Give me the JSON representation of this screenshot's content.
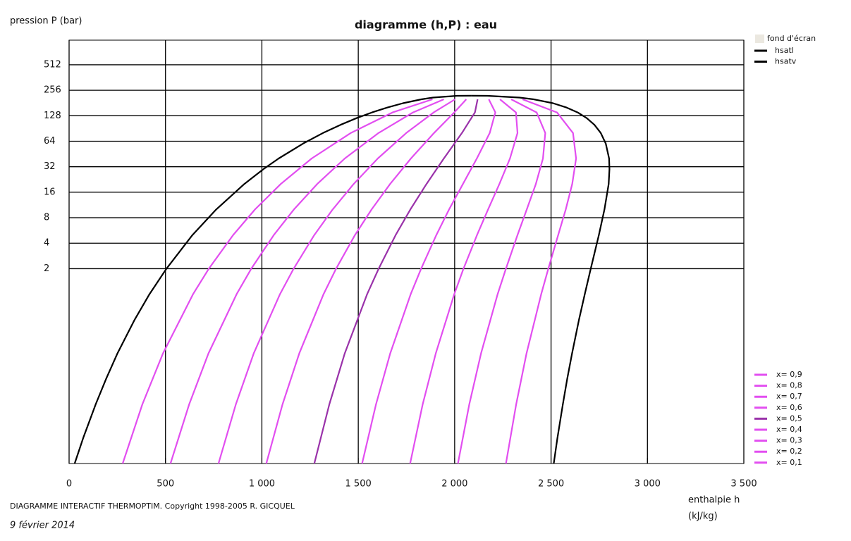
{
  "chart_data": {
    "type": "line",
    "title": "diagramme (h,P) : eau",
    "y_label": "pression  P (bar)",
    "x_label": [
      "enthalpie  h",
      "(kJ/kg)"
    ],
    "footer": "DIAGRAMME INTERACTIF THERMOPTIM.   Copyright 1998-2005   R. GICQUEL",
    "date": "9 février 2014",
    "xlim": [
      0,
      3500
    ],
    "xticks": [
      0,
      500,
      {
        "value": 1000,
        "label": "1 000"
      },
      {
        "value": 1500,
        "label": "1 500"
      },
      {
        "value": 2000,
        "label": "2 000"
      },
      {
        "value": 2500,
        "label": "2 500"
      },
      {
        "value": 3000,
        "label": "3 000"
      },
      {
        "value": 3500,
        "label": "3 500"
      }
    ],
    "ylim": [
      0.01,
      1000
    ],
    "ylog": true,
    "yticks": [
      2,
      4,
      8,
      16,
      32,
      64,
      128,
      256,
      512
    ],
    "grid": true,
    "background_legend": {
      "name": "fond d'écran",
      "color": "#ebe8e0"
    },
    "series": [
      {
        "name": "hsatl",
        "color": "#000000",
        "group": "top",
        "x": [
          29,
          73,
          138,
          192,
          251,
          340,
          417,
          505,
          640,
          763,
          909,
          1008,
          1087,
          1213,
          1317,
          1408,
          1491,
          1571,
          1650,
          1732,
          1827,
          1888,
          2012,
          2087
        ],
        "y": [
          0.01,
          0.02,
          0.05,
          0.1,
          0.2,
          0.5,
          1,
          2,
          5,
          10,
          20,
          30,
          40,
          60,
          80,
          100,
          120,
          140,
          160,
          180,
          200,
          210,
          220,
          220.64
        ]
      },
      {
        "name": "hsatv",
        "color": "#000000",
        "group": "top",
        "x": [
          2514,
          2533,
          2561,
          2584,
          2609,
          2645,
          2675,
          2706,
          2748,
          2777,
          2799,
          2803,
          2801,
          2784,
          2758,
          2725,
          2685,
          2638,
          2581,
          2510,
          2410,
          2336,
          2170,
          2087
        ],
        "y": [
          0.01,
          0.02,
          0.05,
          0.1,
          0.2,
          0.5,
          1,
          2,
          5,
          10,
          20,
          30,
          40,
          60,
          80,
          100,
          120,
          140,
          160,
          180,
          200,
          210,
          220,
          220.64
        ]
      },
      {
        "name": "x= 0,9",
        "color": "#e24ef0",
        "group": "bottom",
        "x": [
          2266,
          2319,
          2373,
          2449,
          2486,
          2537,
          2576,
          2610,
          2630,
          2614,
          2531,
          2352
        ],
        "y": [
          0.01,
          0.05,
          0.2,
          1,
          2,
          5,
          10,
          20,
          40,
          80,
          140,
          200
        ]
      },
      {
        "name": "x= 0,8",
        "color": "#e24ef0",
        "group": "bottom",
        "x": [
          2017,
          2076,
          2137,
          2223,
          2266,
          2326,
          2374,
          2421,
          2458,
          2470,
          2425,
          2293
        ],
        "y": [
          0.01,
          0.05,
          0.2,
          1,
          2,
          5,
          10,
          20,
          40,
          80,
          140,
          200
        ]
      },
      {
        "name": "x= 0,7",
        "color": "#e24ef0",
        "group": "bottom",
        "x": [
          1769,
          1834,
          1902,
          1998,
          2046,
          2116,
          2173,
          2232,
          2287,
          2326,
          2318,
          2235
        ],
        "y": [
          0.01,
          0.05,
          0.2,
          1,
          2,
          5,
          10,
          20,
          40,
          80,
          140,
          200
        ]
      },
      {
        "name": "x= 0,6",
        "color": "#e24ef0",
        "group": "bottom",
        "x": [
          1520,
          1592,
          1666,
          1772,
          1826,
          1905,
          1971,
          2043,
          2115,
          2182,
          2211,
          2177
        ],
        "y": [
          0.01,
          0.05,
          0.2,
          1,
          2,
          5,
          10,
          20,
          40,
          80,
          140,
          200
        ]
      },
      {
        "name": "x= 0,5",
        "color": "#9a32aa",
        "group": "bottom",
        "x": [
          1272,
          1350,
          1430,
          1546,
          1606,
          1694,
          1770,
          1854,
          1944,
          2038,
          2105,
          2119
        ],
        "y": [
          0.01,
          0.05,
          0.2,
          1,
          2,
          5,
          10,
          20,
          40,
          80,
          140,
          200
        ]
      },
      {
        "name": "x= 0,4",
        "color": "#e24ef0",
        "group": "bottom",
        "x": [
          1023,
          1107,
          1194,
          1320,
          1385,
          1483,
          1569,
          1665,
          1773,
          1893,
          1998,
          2060
        ],
        "y": [
          0.01,
          0.05,
          0.2,
          1,
          2,
          5,
          10,
          20,
          40,
          80,
          140,
          200
        ]
      },
      {
        "name": "x= 0,3",
        "color": "#e24ef0",
        "group": "bottom",
        "x": [
          775,
          865,
          958,
          1094,
          1165,
          1272,
          1367,
          1476,
          1601,
          1749,
          1891,
          2002
        ],
        "y": [
          0.01,
          0.05,
          0.2,
          1,
          2,
          5,
          10,
          20,
          40,
          80,
          140,
          200
        ]
      },
      {
        "name": "x= 0,2",
        "color": "#e24ef0",
        "group": "bottom",
        "x": [
          526,
          623,
          723,
          869,
          945,
          1062,
          1166,
          1287,
          1430,
          1605,
          1784,
          1944
        ],
        "y": [
          0.01,
          0.05,
          0.2,
          1,
          2,
          5,
          10,
          20,
          40,
          80,
          140,
          200
        ]
      },
      {
        "name": "x= 0,1",
        "color": "#e24ef0",
        "group": "bottom",
        "x": [
          278,
          380,
          487,
          643,
          725,
          851,
          964,
          1098,
          1258,
          1461,
          1678,
          1885
        ],
        "y": [
          0.01,
          0.05,
          0.2,
          1,
          2,
          5,
          10,
          20,
          40,
          80,
          140,
          200
        ]
      }
    ]
  }
}
